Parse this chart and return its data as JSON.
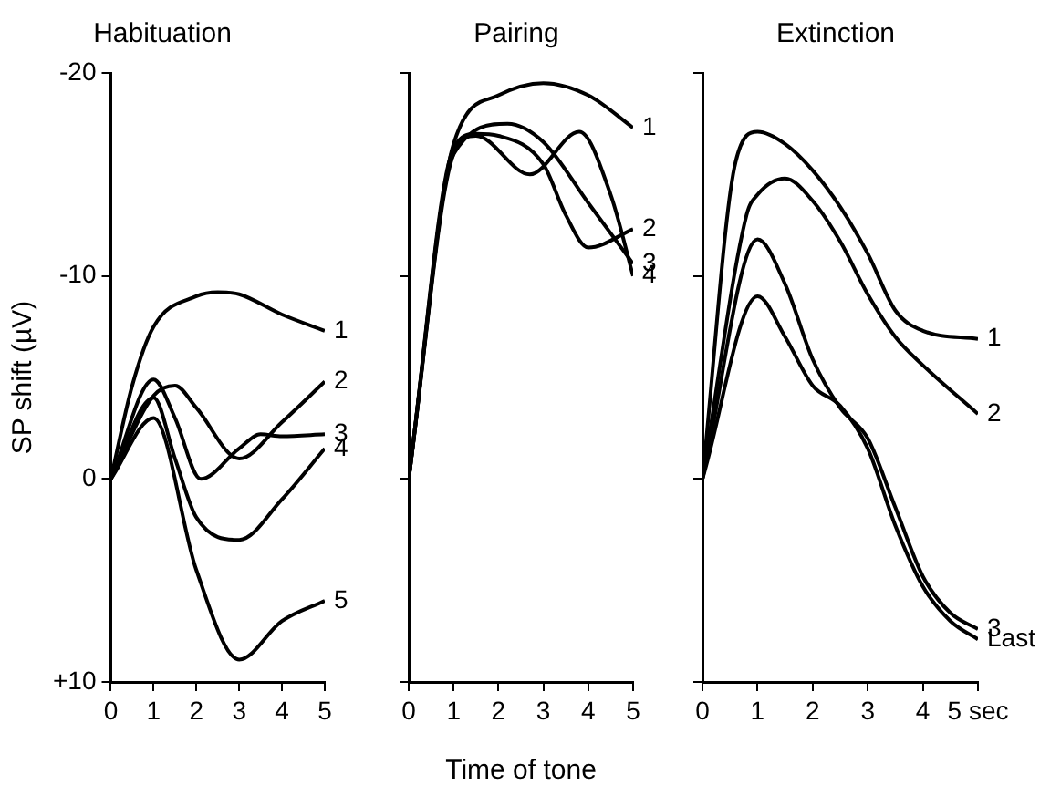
{
  "chart_data": [
    {
      "type": "line",
      "title": "Habituation",
      "ylabel": "SP shift (µV)",
      "ylim": [
        10,
        -20
      ],
      "yticks": [
        -20,
        -10,
        0,
        {
          "value": 10,
          "label": "+10"
        }
      ],
      "xlim": [
        0,
        5
      ],
      "xticks": [
        0,
        1,
        2,
        3,
        4,
        5
      ],
      "grid": false,
      "legend": false,
      "marker": "none",
      "line_style": "solid",
      "series": [
        {
          "name": "1",
          "color": "#000000",
          "x": [
            0,
            0.5,
            1,
            2,
            2.5,
            3,
            4,
            5
          ],
          "values": [
            0,
            -4.6,
            -7.5,
            -9,
            -9.2,
            -9.1,
            -8.1,
            -7.3
          ]
        },
        {
          "name": "2",
          "color": "#000000",
          "x": [
            0,
            1,
            1.5,
            2,
            3,
            4,
            5
          ],
          "values": [
            0,
            -4.1,
            -4.6,
            -3.5,
            -1,
            -2.8,
            -4.8
          ]
        },
        {
          "name": "3",
          "color": "#000000",
          "x": [
            0,
            1,
            1.5,
            2.1,
            3,
            3.5,
            4,
            5
          ],
          "values": [
            0,
            -4.9,
            -3,
            0,
            -1.5,
            -2.2,
            -2.1,
            -2.2
          ]
        },
        {
          "name": "4",
          "color": "#000000",
          "x": [
            0,
            1,
            1.5,
            2,
            3,
            4,
            5
          ],
          "values": [
            0,
            -4,
            -1,
            1.9,
            3,
            1,
            -1.5
          ]
        },
        {
          "name": "5",
          "color": "#000000",
          "x": [
            0,
            1,
            2,
            3,
            4,
            5
          ],
          "values": [
            0,
            -3,
            4.5,
            8.9,
            7,
            6
          ]
        }
      ]
    },
    {
      "type": "line",
      "title": "Pairing",
      "xlabel": "Time of tone",
      "ylim": [
        10,
        -20
      ],
      "yticks": [
        {
          "value": -20,
          "label": null
        },
        {
          "value": -10,
          "label": null
        },
        {
          "value": 0,
          "label": null
        },
        {
          "value": 10,
          "label": null
        }
      ],
      "xlim": [
        0,
        5
      ],
      "xticks": [
        0,
        1,
        2,
        3,
        4,
        5
      ],
      "tick_labels": "x",
      "grid": false,
      "legend": false,
      "marker": "none",
      "line_style": "solid",
      "series": [
        {
          "name": "1",
          "color": "#000000",
          "x": [
            0,
            1,
            2,
            3,
            4,
            5
          ],
          "values": [
            0,
            -16.5,
            -18.9,
            -19.5,
            -18.9,
            -17.3
          ]
        },
        {
          "name": "2",
          "color": "#000000",
          "x": [
            0,
            1,
            1.5,
            2,
            3,
            3.5,
            4,
            5
          ],
          "values": [
            0,
            -16.3,
            -17,
            -16.9,
            -15.5,
            -13,
            -11.4,
            -12.3
          ]
        },
        {
          "name": "3",
          "color": "#000000",
          "x": [
            0,
            1,
            2.2,
            3,
            4,
            5
          ],
          "values": [
            0,
            -16,
            -17.5,
            -16.6,
            -13.6,
            -10.6
          ]
        },
        {
          "name": "4",
          "color": "#000000",
          "x": [
            0,
            1,
            1.5,
            2.7,
            3.8,
            4.5,
            5
          ],
          "values": [
            0,
            -16,
            -16.9,
            -15,
            -17.1,
            -14,
            -10
          ]
        }
      ]
    },
    {
      "type": "line",
      "title": "Extinction",
      "ylim": [
        10,
        -20
      ],
      "yticks": [
        {
          "value": -20,
          "label": null
        },
        {
          "value": -10,
          "label": null
        },
        {
          "value": 0,
          "label": null
        },
        {
          "value": 10,
          "label": null
        }
      ],
      "xlim": [
        0,
        5
      ],
      "xticks": [
        0,
        1,
        2,
        3,
        4,
        {
          "value": 5,
          "label": "5 sec"
        }
      ],
      "tick_labels": "x",
      "grid": false,
      "legend": false,
      "marker": "none",
      "line_style": "solid",
      "series": [
        {
          "name": "1",
          "color": "#000000",
          "x": [
            0,
            0.6,
            1,
            1.5,
            2,
            2.5,
            3,
            3.5,
            4,
            5
          ],
          "values": [
            0,
            -15.6,
            -17.1,
            -16.5,
            -15.2,
            -13.4,
            -11.1,
            -8.3,
            -7.3,
            -6.9
          ]
        },
        {
          "name": "2",
          "color": "#000000",
          "x": [
            0,
            0.8,
            1,
            1.5,
            2,
            2.5,
            3,
            3.5,
            4,
            5
          ],
          "values": [
            0,
            -13,
            -14,
            -14.8,
            -13.7,
            -11.7,
            -9.1,
            -7,
            -5.6,
            -3.2
          ]
        },
        {
          "name": "3",
          "color": "#000000",
          "x": [
            0,
            1,
            1.5,
            2,
            2.5,
            3,
            3.5,
            4,
            4.5,
            5
          ],
          "values": [
            0,
            -11.8,
            -9.6,
            -5.9,
            -3.5,
            -2,
            1.4,
            4.8,
            6.6,
            7.4
          ]
        },
        {
          "name": "Last",
          "color": "#000000",
          "x": [
            0,
            1,
            1.5,
            2,
            2.5,
            3,
            3.5,
            4,
            4.5,
            5
          ],
          "values": [
            0,
            -9,
            -7,
            -4.6,
            -3.6,
            -1.5,
            2.3,
            5.3,
            7,
            7.9
          ]
        }
      ]
    }
  ]
}
